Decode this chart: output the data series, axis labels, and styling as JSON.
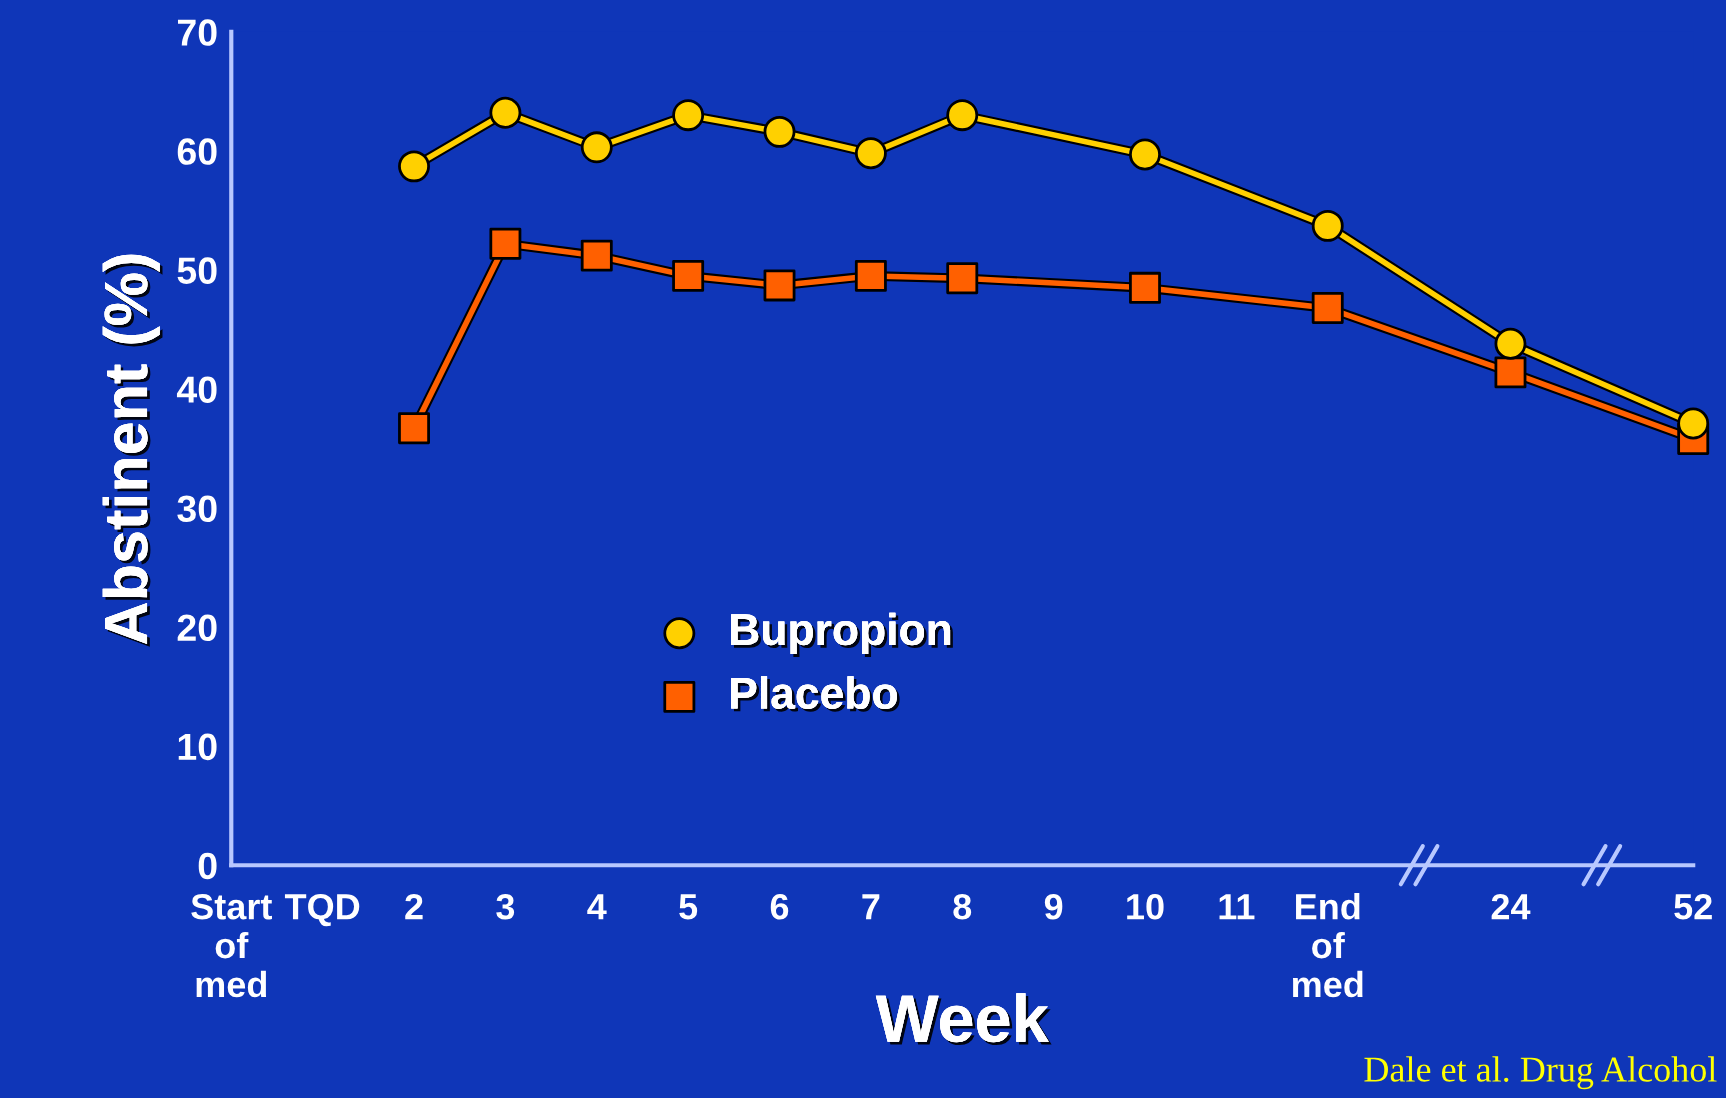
{
  "chart_data": {
    "type": "line",
    "xlabel": "Week",
    "ylabel": "Abstinent (%)",
    "categories": [
      "Start\nof\nmed",
      "TQD",
      "2",
      "3",
      "4",
      "5",
      "6",
      "7",
      "8",
      "9",
      "10",
      "11",
      "End\nof\nmed",
      null,
      "24",
      null,
      "52"
    ],
    "series": [
      {
        "name": "Bupropion",
        "color": "#ffd000",
        "marker": "circle",
        "values": [
          null,
          null,
          58.7,
          63.2,
          60.3,
          63.0,
          61.6,
          59.8,
          63.0,
          null,
          59.7,
          null,
          53.7,
          null,
          43.8,
          null,
          37.1
        ]
      },
      {
        "name": "Placebo",
        "color": "#ff6000",
        "marker": "square",
        "values": [
          null,
          null,
          36.7,
          52.2,
          51.2,
          49.5,
          48.7,
          49.5,
          49.3,
          null,
          48.5,
          null,
          46.8,
          null,
          41.4,
          null,
          35.8
        ]
      }
    ],
    "ylim": [
      0,
      70
    ],
    "yticks": [
      0,
      10,
      20,
      30,
      40,
      50,
      60,
      70
    ],
    "grid": false,
    "legend": "center left",
    "annotations": [
      "Dale et al. Drug Alcohol"
    ]
  }
}
